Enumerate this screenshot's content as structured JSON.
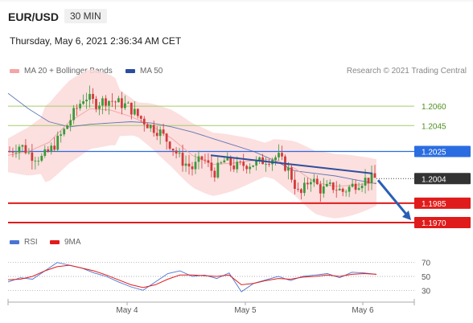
{
  "header": {
    "symbol": "EUR/USD",
    "timeframe": "30 MIN",
    "datetime": "Thursday, May 6, 2021 2:36:34 AM CET"
  },
  "legend": {
    "ma20_bb": "MA 20 + Bollinger Bands",
    "ma50": "MA 50",
    "credit": "Research © 2021 Trading Central"
  },
  "colors": {
    "bb_band": "#fcd9d9",
    "ma20": "#f0a3a3",
    "ma50": "#3a5ba8",
    "resistance": "#a6cc6a",
    "pivot": "#2b6de0",
    "support": "#e01b1b",
    "last_price": "#333333",
    "arrow": "#2a5fb5",
    "candle_up": "#3b9a3b",
    "candle_down": "#d23a3a",
    "rsi": "#4a74d4",
    "rsi_ma": "#e21c1c"
  },
  "chart_data": [
    {
      "type": "candlestick",
      "title": "EUR/USD 30 MIN",
      "x_ticks": [
        "May 4",
        "May 5",
        "May 6"
      ],
      "levels": [
        {
          "value": 1.206,
          "label": "1.2060",
          "kind": "resistance"
        },
        {
          "value": 1.2045,
          "label": "1.2045",
          "kind": "resistance"
        },
        {
          "value": 1.2025,
          "label": "1.2025",
          "kind": "pivot"
        },
        {
          "value": 1.2004,
          "label": "1.2004",
          "kind": "last"
        },
        {
          "value": 1.1985,
          "label": "1.1985",
          "kind": "support"
        },
        {
          "value": 1.197,
          "label": "1.1970",
          "kind": "support"
        }
      ],
      "ylim": [
        1.1965,
        1.208
      ],
      "price_path": [
        1.2025,
        1.203,
        1.2022,
        1.202,
        1.2028,
        1.204,
        1.2055,
        1.2068,
        1.2062,
        1.2065,
        1.2063,
        1.206,
        1.2052,
        1.2045,
        1.204,
        1.203,
        1.2018,
        1.2012,
        1.202,
        1.2008,
        1.2018,
        1.2013,
        1.2015,
        1.2016,
        1.2019,
        1.2021,
        1.201,
        1.199,
        1.2005,
        1.1995,
        1.1998,
        1.1994,
        1.1999,
        1.2003,
        1.2004
      ],
      "ma50_path": [
        1.207,
        1.2058,
        1.2048,
        1.2044,
        1.2046,
        1.2047,
        1.2048,
        1.2047,
        1.2044,
        1.204,
        1.2035,
        1.203,
        1.2025,
        1.2018,
        1.201,
        1.2008,
        1.2006,
        1.2003,
        1.2
      ],
      "ma20_path": [
        1.2022,
        1.2025,
        1.2032,
        1.2048,
        1.2058,
        1.2057,
        1.2052,
        1.2045,
        1.2035,
        1.2022,
        1.2015,
        1.2016,
        1.2018,
        1.2019,
        1.2012,
        1.2001,
        1.1998,
        1.1999,
        1.2001
      ],
      "trendline": [
        1.2022,
        1.2008
      ],
      "forecast_arrow": [
        1.2004,
        1.197
      ]
    },
    {
      "type": "line",
      "title": "RSI",
      "series": [
        {
          "name": "RSI",
          "values": [
            42,
            48,
            46,
            58,
            70,
            66,
            62,
            55,
            50,
            42,
            35,
            30,
            42,
            54,
            58,
            50,
            52,
            47,
            55,
            28,
            40,
            45,
            50,
            44,
            50,
            52,
            54,
            48,
            56,
            55,
            53
          ]
        },
        {
          "name": "9MA",
          "values": [
            45,
            46,
            50,
            58,
            64,
            66,
            62,
            58,
            52,
            45,
            38,
            34,
            38,
            46,
            52,
            52,
            51,
            50,
            52,
            38,
            40,
            44,
            47,
            46,
            49,
            50,
            52,
            50,
            53,
            54,
            53
          ]
        }
      ],
      "legend": [
        "RSI",
        "9MA"
      ],
      "ylim": [
        20,
        80
      ],
      "y_ticks": [
        70,
        50,
        30
      ]
    }
  ]
}
